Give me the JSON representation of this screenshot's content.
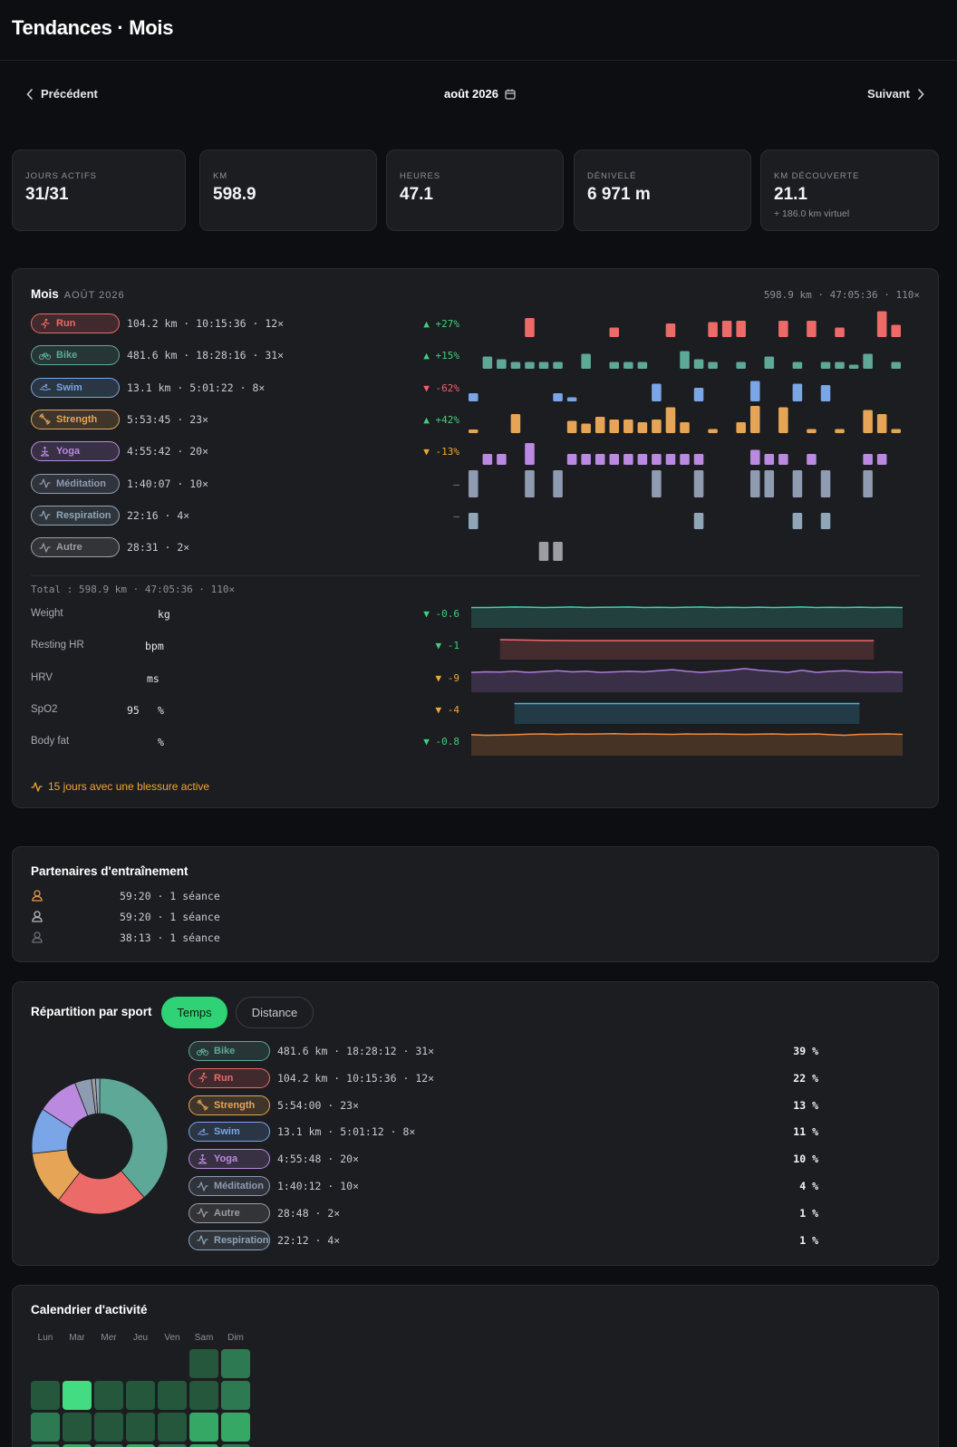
{
  "header": {
    "title": "Tendances · Mois"
  },
  "nav": {
    "prev": "Précédent",
    "next": "Suivant",
    "month": "août 2026"
  },
  "stats": [
    {
      "label": "JOURS ACTIFS",
      "value": "31/31",
      "sub": ""
    },
    {
      "label": "KM",
      "value": "598.9",
      "sub": ""
    },
    {
      "label": "HEURES",
      "value": "47.1",
      "sub": ""
    },
    {
      "label": "DÉNIVELÉ",
      "value": "6 971 m",
      "sub": ""
    },
    {
      "label": "KM DÉCOUVERTE",
      "value": "21.1",
      "sub": "+ 186.0 km virtuel"
    }
  ],
  "month_card": {
    "title": "Mois",
    "subtitle": "AOÛT 2026",
    "summary": "598.9 km · 47:05:36 · 110×",
    "total": "Total : 598.9 km · 47:05:36 · 110×",
    "injury": "15 jours avec une blessure active",
    "sports": [
      {
        "name": "Run",
        "stats": "104.2 km · 10:15:36 · 12×",
        "delta": "▲ +27%",
        "trend": "up",
        "color": "#ec6a67",
        "icon": "run-icon",
        "days": [
          0,
          0,
          0,
          0,
          0,
          0,
          0,
          1,
          0,
          0,
          0,
          0,
          0,
          0,
          0,
          0,
          0,
          0,
          0,
          0,
          0,
          0,
          0,
          0,
          0,
          0,
          0,
          0,
          0,
          0,
          0
        ],
        "bars": [
          [
            4,
            0.7
          ],
          [
            10,
            0.35
          ],
          [
            14,
            0.5
          ],
          [
            17,
            0.55
          ],
          [
            18,
            0.6
          ],
          [
            19,
            0.6
          ],
          [
            22,
            0.6
          ],
          [
            24,
            0.6
          ],
          [
            26,
            0.35
          ],
          [
            29,
            0.95
          ],
          [
            30,
            0.45
          ]
        ]
      },
      {
        "name": "Bike",
        "stats": "481.6 km · 18:28:16 · 31×",
        "delta": "▲ +15%",
        "trend": "up",
        "color": "#5ea898",
        "icon": "bike-icon",
        "bars": [
          [
            1,
            0.45
          ],
          [
            2,
            0.35
          ],
          [
            3,
            0.25
          ],
          [
            4,
            0.25
          ],
          [
            5,
            0.25
          ],
          [
            6,
            0.25
          ],
          [
            8,
            0.55
          ],
          [
            10,
            0.25
          ],
          [
            11,
            0.25
          ],
          [
            12,
            0.25
          ],
          [
            15,
            0.65
          ],
          [
            16,
            0.35
          ],
          [
            17,
            0.25
          ],
          [
            19,
            0.25
          ],
          [
            21,
            0.45
          ],
          [
            23,
            0.25
          ],
          [
            25,
            0.25
          ],
          [
            26,
            0.25
          ],
          [
            27,
            0.15
          ],
          [
            28,
            0.55
          ],
          [
            30,
            0.25
          ]
        ]
      },
      {
        "name": "Swim",
        "stats": "13.1 km · 5:01:22 · 8×",
        "delta": "▼ -62%",
        "trend": "down-red",
        "color": "#7aa5e6",
        "icon": "swim-icon",
        "bars": [
          [
            0,
            0.3
          ],
          [
            6,
            0.3
          ],
          [
            7,
            0.15
          ],
          [
            13,
            0.65
          ],
          [
            16,
            0.5
          ],
          [
            20,
            0.75
          ],
          [
            23,
            0.65
          ],
          [
            25,
            0.6
          ]
        ]
      },
      {
        "name": "Strength",
        "stats": "5:53:45 · 23×",
        "delta": "▲ +42%",
        "trend": "up",
        "color": "#e6a556",
        "icon": "strength-icon",
        "bars": [
          [
            0,
            0.1
          ],
          [
            3,
            0.7
          ],
          [
            7,
            0.45
          ],
          [
            8,
            0.35
          ],
          [
            9,
            0.6
          ],
          [
            10,
            0.5
          ],
          [
            11,
            0.5
          ],
          [
            12,
            0.4
          ],
          [
            13,
            0.5
          ],
          [
            14,
            0.95
          ],
          [
            15,
            0.4
          ],
          [
            17,
            0.15
          ],
          [
            19,
            0.4
          ],
          [
            20,
            1.0
          ],
          [
            22,
            0.95
          ],
          [
            24,
            0.15
          ],
          [
            26,
            0.15
          ],
          [
            28,
            0.85
          ],
          [
            29,
            0.7
          ],
          [
            30,
            0.15
          ]
        ]
      },
      {
        "name": "Yoga",
        "stats": "4:55:42 · 20×",
        "delta": "▼ -13%",
        "trend": "down-amb",
        "color": "#bb8ae0",
        "icon": "yoga-icon",
        "bars": [
          [
            1,
            0.4
          ],
          [
            2,
            0.4
          ],
          [
            4,
            0.8
          ],
          [
            7,
            0.4
          ],
          [
            8,
            0.4
          ],
          [
            9,
            0.4
          ],
          [
            10,
            0.4
          ],
          [
            11,
            0.4
          ],
          [
            12,
            0.4
          ],
          [
            13,
            0.4
          ],
          [
            14,
            0.4
          ],
          [
            15,
            0.4
          ],
          [
            16,
            0.4
          ],
          [
            20,
            0.55
          ],
          [
            21,
            0.4
          ],
          [
            22,
            0.4
          ],
          [
            24,
            0.4
          ],
          [
            28,
            0.4
          ],
          [
            29,
            0.4
          ]
        ]
      },
      {
        "name": "Méditation",
        "stats": "1:40:07 · 10×",
        "delta": "—",
        "trend": "neutral",
        "color": "#8e9bb0",
        "icon": "activity-icon",
        "bars": [
          [
            0,
            1
          ],
          [
            4,
            1
          ],
          [
            6,
            1
          ],
          [
            13,
            1
          ],
          [
            16,
            1
          ],
          [
            20,
            1
          ],
          [
            21,
            1
          ],
          [
            23,
            1
          ],
          [
            25,
            1
          ],
          [
            28,
            1
          ]
        ]
      },
      {
        "name": "Respiration",
        "stats": "22:16 · 4×",
        "delta": "—",
        "trend": "neutral",
        "color": "#8ea6b8",
        "icon": "activity-icon",
        "bars": [
          [
            0,
            0.6
          ],
          [
            16,
            0.6
          ],
          [
            23,
            0.6
          ],
          [
            25,
            0.6
          ]
        ]
      },
      {
        "name": "Autre",
        "stats": "28:31 · 2×",
        "delta": "",
        "trend": "neutral",
        "color": "#9c9ea3",
        "icon": "activity-icon",
        "bars": [
          [
            5,
            0.7
          ],
          [
            6,
            0.7
          ]
        ]
      }
    ],
    "metrics": [
      {
        "name": "Weight",
        "value": "",
        "unit": "kg",
        "delta": "▼ -0.6",
        "trend": "up",
        "color": "#3ecfb3",
        "values": [
          0.5,
          0.5,
          0.52,
          0.55,
          0.53,
          0.5,
          0.52,
          0.55,
          0.5,
          0.52,
          0.53,
          0.55,
          0.5,
          0.52,
          0.5,
          0.53,
          0.55,
          0.5,
          0.52,
          0.5,
          0.53,
          0.5,
          0.52,
          0.55,
          0.5,
          0.52,
          0.5,
          0.53,
          0.5,
          0.52,
          0.5
        ]
      },
      {
        "name": "Resting HR",
        "value": "",
        "unit": "bpm",
        "delta": "▼ -1",
        "trend": "up",
        "color": "#ec6a67",
        "values": [
          0.5,
          0.48,
          0.46,
          0.44,
          0.42,
          0.4,
          0.39,
          0.38,
          0.38,
          0.38,
          0.38,
          0.38,
          0.38,
          0.38,
          0.38,
          0.38,
          0.38,
          0.38,
          0.38,
          0.38,
          0.38,
          0.38,
          0.38,
          0.38,
          0.38,
          0.38,
          0.38,
          0.38,
          0.38,
          0.38,
          0.38
        ],
        "start": 2,
        "end": 28
      },
      {
        "name": "HRV",
        "value": "",
        "unit": "ms",
        "delta": "▼ -9",
        "trend": "down-amb",
        "color": "#b07ae0",
        "values": [
          0.45,
          0.5,
          0.48,
          0.55,
          0.45,
          0.52,
          0.6,
          0.5,
          0.55,
          0.45,
          0.5,
          0.55,
          0.5,
          0.6,
          0.7,
          0.55,
          0.45,
          0.55,
          0.65,
          0.8,
          0.65,
          0.55,
          0.45,
          0.65,
          0.45,
          0.55,
          0.6,
          0.5,
          0.45,
          0.5,
          0.45
        ]
      },
      {
        "name": "SpO2",
        "value": "95",
        "unit": "%",
        "delta": "▼ -4",
        "trend": "down-amb",
        "color": "#3db6e0",
        "values": [
          0.5,
          0.5,
          0.5,
          0.5,
          0.5,
          0.5,
          0.5,
          0.5,
          0.5,
          0.5,
          0.5,
          0.5,
          0.5,
          0.5,
          0.5,
          0.5,
          0.5,
          0.5,
          0.5,
          0.5,
          0.5,
          0.5,
          0.5,
          0.5,
          0.5,
          0.5,
          0.5,
          0.5,
          0.5,
          0.5,
          0.5
        ],
        "start": 3,
        "end": 27
      },
      {
        "name": "Body fat",
        "value": "",
        "unit": "%",
        "delta": "▼ -0.8",
        "trend": "up",
        "color": "#ee8a3e",
        "values": [
          0.55,
          0.5,
          0.52,
          0.55,
          0.6,
          0.62,
          0.58,
          0.62,
          0.6,
          0.62,
          0.65,
          0.6,
          0.62,
          0.6,
          0.58,
          0.62,
          0.6,
          0.62,
          0.6,
          0.58,
          0.6,
          0.62,
          0.58,
          0.6,
          0.62,
          0.55,
          0.5,
          0.58,
          0.6,
          0.62,
          0.58
        ]
      }
    ]
  },
  "partners": {
    "title": "Partenaires d'entraînement",
    "items": [
      {
        "text": "59:20 · 1 séance",
        "color": "#e89a4a"
      },
      {
        "text": "59:20 · 1 séance",
        "color": "#b8bac0"
      },
      {
        "text": "38:13 · 1 séance",
        "color": "#6c6f76"
      }
    ]
  },
  "breakdown": {
    "title": "Répartition par sport",
    "tabs": [
      "Temps",
      "Distance"
    ],
    "active_tab": "Temps",
    "items": [
      {
        "name": "Bike",
        "stats": "481.6 km · 18:28:12 · 31×",
        "percent": "39 %",
        "color": "#5ea898",
        "icon": "bike-icon"
      },
      {
        "name": "Run",
        "stats": "104.2 km · 10:15:36 · 12×",
        "percent": "22 %",
        "color": "#ec6a67",
        "icon": "run-icon"
      },
      {
        "name": "Strength",
        "stats": "5:54:00 · 23×",
        "percent": "13 %",
        "color": "#e6a556",
        "icon": "strength-icon"
      },
      {
        "name": "Swim",
        "stats": "13.1 km · 5:01:12 · 8×",
        "percent": "11 %",
        "color": "#7aa5e6",
        "icon": "swim-icon"
      },
      {
        "name": "Yoga",
        "stats": "4:55:48 · 20×",
        "percent": "10 %",
        "color": "#bb8ae0",
        "icon": "yoga-icon"
      },
      {
        "name": "Méditation",
        "stats": "1:40:12 · 10×",
        "percent": "4 %",
        "color": "#8e9bb0",
        "icon": "activity-icon"
      },
      {
        "name": "Autre",
        "stats": "28:48 · 2×",
        "percent": "1 %",
        "color": "#9c9ea3",
        "icon": "activity-icon"
      },
      {
        "name": "Respiration",
        "stats": "22:12 · 4×",
        "percent": "1 %",
        "color": "#8ea6b8",
        "icon": "activity-icon"
      }
    ],
    "slices": [
      {
        "name": "Bike",
        "value": 39,
        "color": "#5ea898"
      },
      {
        "name": "Run",
        "value": 22,
        "color": "#ec6a67"
      },
      {
        "name": "Strength",
        "value": 13,
        "color": "#e6a556"
      },
      {
        "name": "Swim",
        "value": 11,
        "color": "#7aa5e6"
      },
      {
        "name": "Yoga",
        "value": 10,
        "color": "#bb8ae0"
      },
      {
        "name": "Méditation",
        "value": 4,
        "color": "#8e9bb0"
      },
      {
        "name": "Autre",
        "value": 1,
        "color": "#9c9ea3"
      },
      {
        "name": "Respiration",
        "value": 1,
        "color": "#8ea6b8"
      }
    ]
  },
  "calendar": {
    "title": "Calendrier d'activité",
    "weekdays": [
      "Lun",
      "Mar",
      "Mer",
      "Jeu",
      "Ven",
      "Sam",
      "Dim"
    ],
    "levels": [
      [
        null,
        null,
        null,
        null,
        null,
        1,
        2
      ],
      [
        1,
        4,
        1,
        1,
        1,
        1,
        2
      ],
      [
        2,
        1,
        1,
        1,
        1,
        3,
        3
      ],
      [
        2,
        3,
        2,
        3,
        2,
        3,
        2
      ]
    ],
    "level_colors": [
      "#1d3a2a",
      "#25573d",
      "#2d7a52",
      "#35a866",
      "#43dc82"
    ]
  }
}
